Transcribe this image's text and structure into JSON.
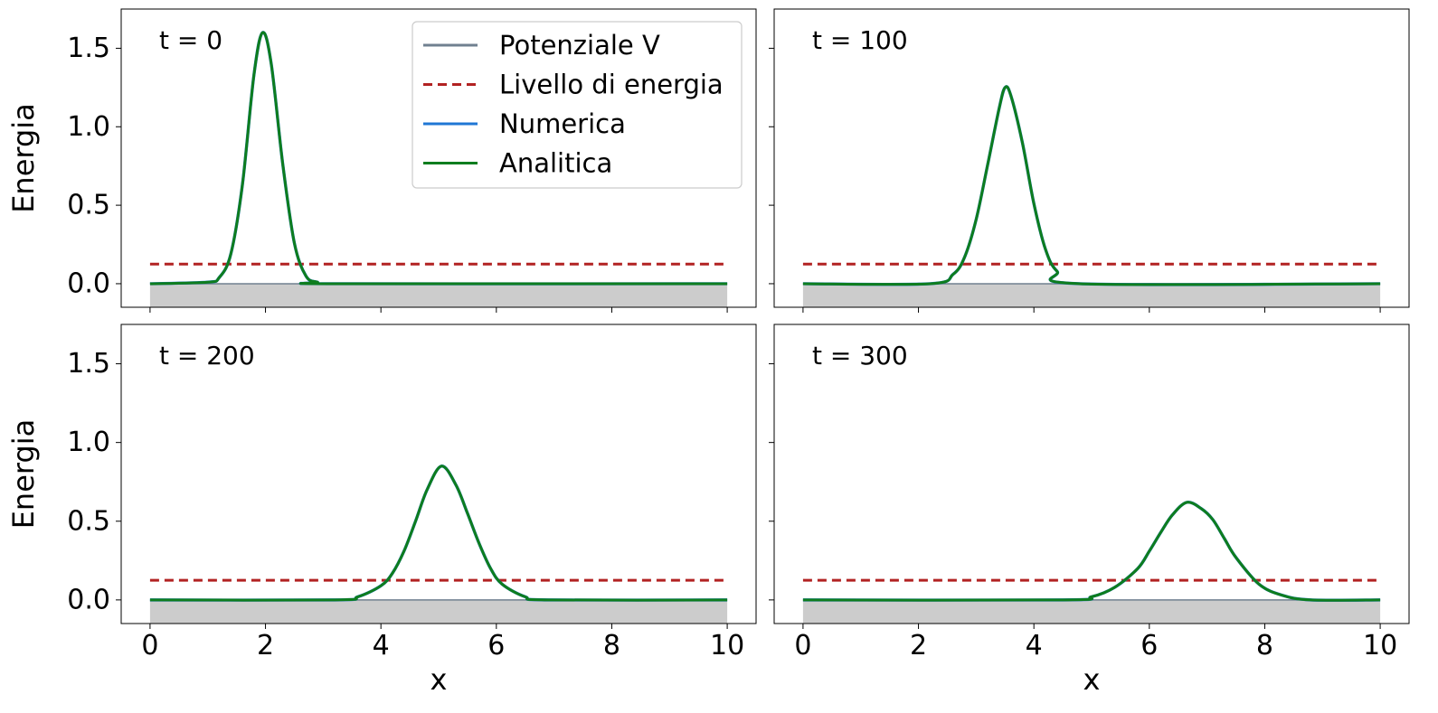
{
  "chart_data": {
    "type": "line",
    "xlabel": "x",
    "ylabel": "Energia",
    "xlim": [
      -0.5,
      10.5
    ],
    "ylim": [
      -0.15,
      1.75
    ],
    "xticks": [
      0,
      2,
      4,
      6,
      8,
      10
    ],
    "xtick_labels": [
      "0",
      "2",
      "4",
      "6",
      "8",
      "10"
    ],
    "yticks": [
      0.0,
      0.5,
      1.0,
      1.5
    ],
    "ytick_labels": [
      "0.0",
      "0.5",
      "1.0",
      "1.5"
    ],
    "grid": false,
    "legend_location": "top-right of first panel",
    "energy_level": 0.125,
    "potential": {
      "x": [
        0,
        10
      ],
      "y": [
        0,
        0
      ]
    },
    "legend": [
      {
        "label": "Potenziale V",
        "color": "#708090",
        "style": "solid"
      },
      {
        "label": "Livello di energia",
        "color": "#b22222",
        "style": "dashed"
      },
      {
        "label": "Numerica",
        "color": "#1f77d4",
        "style": "solid"
      },
      {
        "label": "Analitica",
        "color": "#0e7d1e",
        "style": "solid"
      }
    ],
    "panels": [
      {
        "label": "t = 0",
        "series": [
          {
            "name": "Numerica",
            "x": [
              0,
              1,
              1.2,
              1.4,
              1.6,
              1.8,
              1.95,
              2.1,
              2.3,
              2.5,
              2.7,
              2.9,
              3.2,
              10
            ],
            "y": [
              0.0,
              0.01,
              0.04,
              0.19,
              0.63,
              1.33,
              1.6,
              1.4,
              0.76,
              0.26,
              0.05,
              0.01,
              0.0,
              0.0
            ]
          },
          {
            "name": "Analitica",
            "x": [
              0,
              1,
              1.2,
              1.4,
              1.6,
              1.8,
              1.95,
              2.1,
              2.3,
              2.5,
              2.7,
              2.9,
              3.2,
              10
            ],
            "y": [
              0.0,
              0.01,
              0.04,
              0.19,
              0.63,
              1.33,
              1.6,
              1.4,
              0.76,
              0.26,
              0.05,
              0.01,
              0.0,
              0.0
            ]
          }
        ]
      },
      {
        "label": "t = 100",
        "series": [
          {
            "name": "Numerica",
            "x": [
              0,
              2.2,
              2.6,
              2.8,
              3.0,
              3.2,
              3.4,
              3.5,
              3.6,
              3.8,
              4.0,
              4.2,
              4.4,
              4.8,
              10
            ],
            "y": [
              0.0,
              0.0,
              0.06,
              0.17,
              0.41,
              0.76,
              1.12,
              1.25,
              1.2,
              0.9,
              0.51,
              0.22,
              0.08,
              0.0,
              0.0
            ]
          },
          {
            "name": "Analitica",
            "x": [
              0,
              2.2,
              2.6,
              2.8,
              3.0,
              3.2,
              3.4,
              3.5,
              3.6,
              3.8,
              4.0,
              4.2,
              4.4,
              4.8,
              10
            ],
            "y": [
              0.0,
              0.0,
              0.06,
              0.17,
              0.41,
              0.76,
              1.12,
              1.25,
              1.2,
              0.9,
              0.51,
              0.22,
              0.08,
              0.0,
              0.0
            ]
          }
        ]
      },
      {
        "label": "t = 200",
        "series": [
          {
            "name": "Numerica",
            "x": [
              0,
              3.2,
              3.6,
              4.0,
              4.2,
              4.4,
              4.6,
              4.8,
              5.05,
              5.3,
              5.5,
              5.7,
              5.9,
              6.1,
              6.5,
              6.9,
              10
            ],
            "y": [
              0.0,
              0.0,
              0.02,
              0.09,
              0.17,
              0.31,
              0.5,
              0.7,
              0.85,
              0.73,
              0.55,
              0.36,
              0.2,
              0.1,
              0.02,
              0.0,
              0.0
            ]
          },
          {
            "name": "Analitica",
            "x": [
              0,
              3.2,
              3.6,
              4.0,
              4.2,
              4.4,
              4.6,
              4.8,
              5.05,
              5.3,
              5.5,
              5.7,
              5.9,
              6.1,
              6.5,
              6.9,
              10
            ],
            "y": [
              0.0,
              0.0,
              0.02,
              0.09,
              0.17,
              0.31,
              0.5,
              0.7,
              0.85,
              0.73,
              0.55,
              0.36,
              0.2,
              0.1,
              0.02,
              0.0,
              0.0
            ]
          }
        ]
      },
      {
        "label": "t = 300",
        "series": [
          {
            "name": "Numerica",
            "x": [
              0,
              4.5,
              5.0,
              5.4,
              5.8,
              6.0,
              6.2,
              6.4,
              6.65,
              6.9,
              7.1,
              7.3,
              7.5,
              7.9,
              8.3,
              8.8,
              10
            ],
            "y": [
              0.0,
              0.0,
              0.02,
              0.08,
              0.2,
              0.31,
              0.43,
              0.54,
              0.62,
              0.58,
              0.51,
              0.39,
              0.27,
              0.1,
              0.03,
              0.0,
              0.0
            ]
          },
          {
            "name": "Analitica",
            "x": [
              0,
              4.5,
              5.0,
              5.4,
              5.8,
              6.0,
              6.2,
              6.4,
              6.65,
              6.9,
              7.1,
              7.3,
              7.5,
              7.9,
              8.3,
              8.8,
              10
            ],
            "y": [
              0.0,
              0.0,
              0.02,
              0.08,
              0.2,
              0.31,
              0.43,
              0.54,
              0.62,
              0.58,
              0.51,
              0.39,
              0.27,
              0.1,
              0.03,
              0.0,
              0.0
            ]
          }
        ]
      }
    ]
  }
}
